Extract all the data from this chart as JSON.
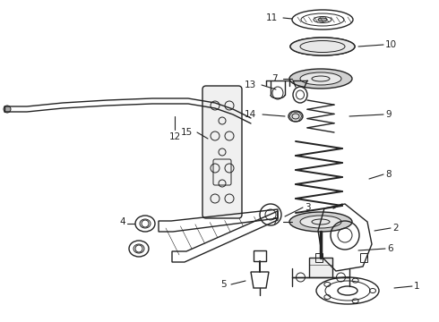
{
  "background_color": "#ffffff",
  "line_color": "#222222",
  "label_color": "#000000",
  "figsize": [
    4.9,
    3.6
  ],
  "dpi": 100
}
